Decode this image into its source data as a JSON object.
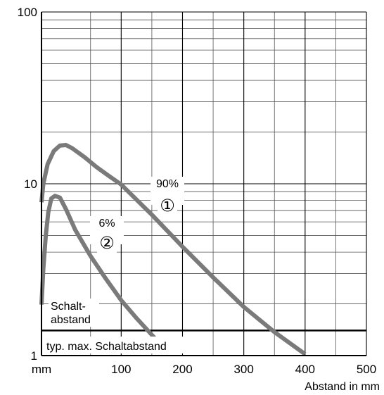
{
  "chart_data": {
    "type": "line",
    "title": "",
    "xlabel": "Abstand in mm",
    "x_unit_label": "mm",
    "ylabel": "",
    "x_scale": "linear",
    "y_scale": "log",
    "xlim": [
      -30,
      500
    ],
    "ylim": [
      1,
      100
    ],
    "x_ticks": [
      100,
      200,
      300,
      400,
      500
    ],
    "y_ticks": [
      1,
      10,
      100
    ],
    "x_tick_labels": [
      "100",
      "200",
      "300",
      "400",
      "500"
    ],
    "y_tick_labels": [
      "1",
      "10",
      "100"
    ],
    "grid": true,
    "series": [
      {
        "name": "90%",
        "marker": "①",
        "color": "#7a7a7a",
        "points": [
          [
            -30,
            7.8
          ],
          [
            -27,
            10
          ],
          [
            -20,
            13
          ],
          [
            -10,
            15.5
          ],
          [
            0,
            16.7
          ],
          [
            10,
            16.8
          ],
          [
            20,
            16.1
          ],
          [
            40,
            14.3
          ],
          [
            60,
            12.5
          ],
          [
            80,
            11.1
          ],
          [
            100,
            9.9
          ],
          [
            150,
            6.6
          ],
          [
            200,
            4.3
          ],
          [
            250,
            2.85
          ],
          [
            300,
            1.92
          ],
          [
            350,
            1.37
          ],
          [
            400,
            1.02
          ]
        ]
      },
      {
        "name": "6%",
        "marker": "②",
        "color": "#7a7a7a",
        "points": [
          [
            -30,
            1.98
          ],
          [
            -27,
            3.2
          ],
          [
            -23,
            5.0
          ],
          [
            -19,
            6.8
          ],
          [
            -14,
            8.2
          ],
          [
            -8,
            8.5
          ],
          [
            0,
            8.3
          ],
          [
            10,
            7.1
          ],
          [
            25,
            5.4
          ],
          [
            50,
            3.8
          ],
          [
            75,
            2.8
          ],
          [
            100,
            2.1
          ],
          [
            125,
            1.65
          ],
          [
            150,
            1.32
          ],
          [
            165,
            1.15
          ],
          [
            180,
            1.07
          ]
        ]
      }
    ],
    "reference_line": {
      "label": "typ. max. Schaltabstand",
      "y": 1.4
    },
    "annotation": "Schalt-\nabstand"
  }
}
